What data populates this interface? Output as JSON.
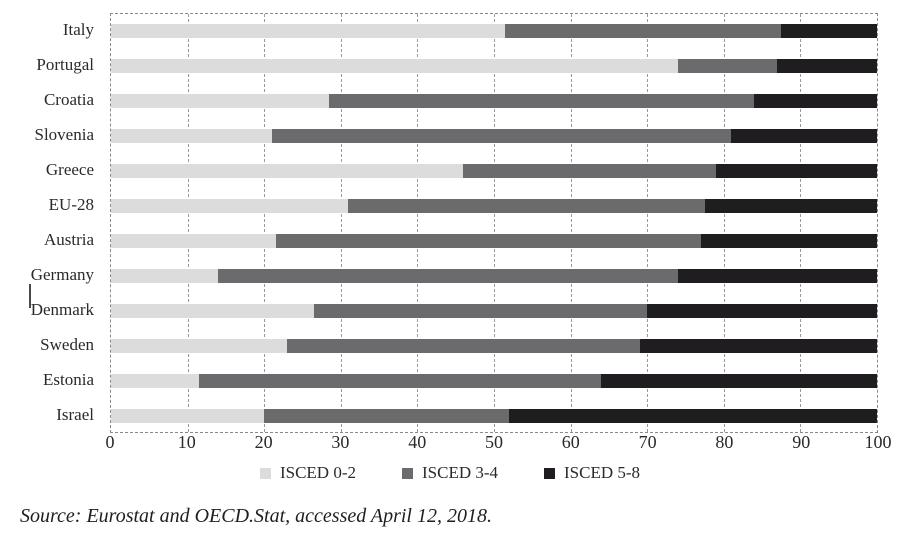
{
  "chart_data": {
    "type": "bar",
    "variant": "horizontal-stacked",
    "title": "",
    "xlabel": "",
    "ylabel": "",
    "xlim": [
      0,
      100
    ],
    "x_ticks": [
      0,
      10,
      20,
      30,
      40,
      50,
      60,
      70,
      80,
      90,
      100
    ],
    "grid": "dashed-vertical",
    "legend_position": "bottom-center",
    "categories": [
      "Italy",
      "Portugal",
      "Croatia",
      "Slovenia",
      "Greece",
      "EU-28",
      "Austria",
      "Germany",
      "Denmark",
      "Sweden",
      "Estonia",
      "Israel"
    ],
    "series": [
      {
        "name": "ISCED 0-2",
        "color": "#dcdcdc",
        "values": [
          51.5,
          74,
          28.5,
          21,
          46,
          31,
          21.5,
          14,
          26.5,
          23,
          11.5,
          20
        ]
      },
      {
        "name": "ISCED 3-4",
        "color": "#6b6b6e",
        "values": [
          36,
          13,
          55.5,
          60,
          33,
          46.5,
          55.5,
          60,
          43.5,
          46,
          52.5,
          32
        ]
      },
      {
        "name": "ISCED 5-8",
        "color": "#1f1d1f",
        "values": [
          12.5,
          13,
          16,
          19,
          21,
          22.5,
          23,
          26,
          30,
          31,
          36,
          48
        ]
      }
    ]
  },
  "source_note": "Source: Eurostat and OECD.Stat, accessed April 12, 2018.",
  "colors": {
    "plot_border": "#8a8a8a",
    "gridline": "#9a9a9a",
    "text": "#2a2a2a",
    "background": "#ffffff"
  },
  "artifacts": {
    "text_cursor": "i-beam caret over 'Denmark' label"
  }
}
